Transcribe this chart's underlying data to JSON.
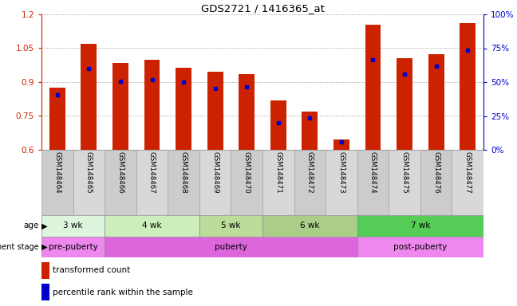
{
  "title": "GDS2721 / 1416365_at",
  "samples": [
    "GSM148464",
    "GSM148465",
    "GSM148466",
    "GSM148467",
    "GSM148468",
    "GSM148469",
    "GSM148470",
    "GSM148471",
    "GSM148472",
    "GSM148473",
    "GSM148474",
    "GSM148475",
    "GSM148476",
    "GSM148477"
  ],
  "bar_values": [
    0.875,
    1.07,
    0.985,
    1.0,
    0.965,
    0.945,
    0.935,
    0.82,
    0.77,
    0.645,
    1.155,
    1.005,
    1.025,
    1.16
  ],
  "dot_values": [
    0.845,
    0.96,
    0.905,
    0.91,
    0.9,
    0.87,
    0.88,
    0.72,
    0.74,
    0.635,
    1.0,
    0.935,
    0.97,
    1.04
  ],
  "bar_color": "#cc2200",
  "dot_color": "#0000cc",
  "ylim": [
    0.6,
    1.2
  ],
  "yticks": [
    0.6,
    0.75,
    0.9,
    1.05,
    1.2
  ],
  "ytick_labels_left": [
    "0.6",
    "0.75",
    "0.9",
    "1.05",
    "1.2"
  ],
  "ytick_labels_right": [
    "0%",
    "25%",
    "50%",
    "75%",
    "100%"
  ],
  "right_ylim": [
    0,
    100
  ],
  "right_yticks": [
    0,
    25,
    50,
    75,
    100
  ],
  "age_groups": [
    {
      "label": "3 wk",
      "start": 0,
      "end": 2
    },
    {
      "label": "4 wk",
      "start": 2,
      "end": 5
    },
    {
      "label": "5 wk",
      "start": 5,
      "end": 7
    },
    {
      "label": "6 wk",
      "start": 7,
      "end": 10
    },
    {
      "label": "7 wk",
      "start": 10,
      "end": 14
    }
  ],
  "age_colors": [
    "#ddf5dd",
    "#cceebb",
    "#bbdd99",
    "#aace88",
    "#55cc55"
  ],
  "dev_groups": [
    {
      "label": "pre-puberty",
      "start": 0,
      "end": 2
    },
    {
      "label": "puberty",
      "start": 2,
      "end": 10
    },
    {
      "label": "post-puberty",
      "start": 10,
      "end": 14
    }
  ],
  "dev_colors": [
    "#ee88ee",
    "#dd66dd",
    "#ee88ee"
  ],
  "bar_width": 0.5,
  "bg_color": "#ffffff",
  "grid_color": "#888888",
  "left_tick_color": "#cc2200",
  "right_tick_color": "#0000cc",
  "legend_bar": "transformed count",
  "legend_dot": "percentile rank within the sample"
}
